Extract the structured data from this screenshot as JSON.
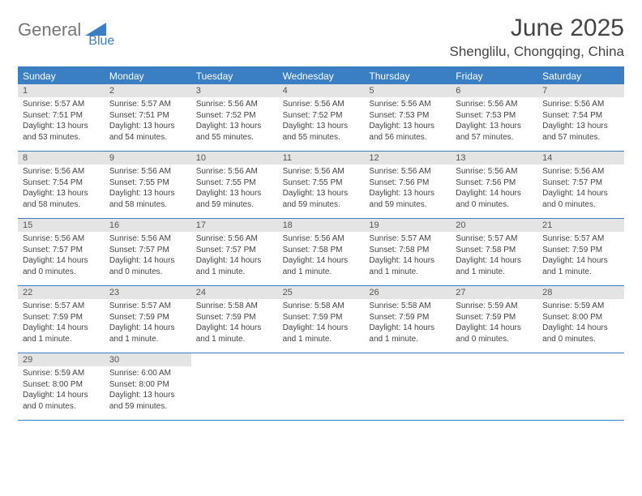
{
  "logo": {
    "part1": "General",
    "part2": "Blue"
  },
  "title": "June 2025",
  "location": "Shenglilu, Chongqing, China",
  "colors": {
    "accent": "#3a7fc4",
    "dow_bg": "#3a7fc4",
    "dow_text": "#ffffff",
    "daynum_bg": "#e4e4e4",
    "text": "#444444",
    "logo_gray": "#777777"
  },
  "daysOfWeek": [
    "Sunday",
    "Monday",
    "Tuesday",
    "Wednesday",
    "Thursday",
    "Friday",
    "Saturday"
  ],
  "weeks": [
    [
      {
        "n": "1",
        "sr": "5:57 AM",
        "ss": "7:51 PM",
        "dl": "13 hours and 53 minutes."
      },
      {
        "n": "2",
        "sr": "5:57 AM",
        "ss": "7:51 PM",
        "dl": "13 hours and 54 minutes."
      },
      {
        "n": "3",
        "sr": "5:56 AM",
        "ss": "7:52 PM",
        "dl": "13 hours and 55 minutes."
      },
      {
        "n": "4",
        "sr": "5:56 AM",
        "ss": "7:52 PM",
        "dl": "13 hours and 55 minutes."
      },
      {
        "n": "5",
        "sr": "5:56 AM",
        "ss": "7:53 PM",
        "dl": "13 hours and 56 minutes."
      },
      {
        "n": "6",
        "sr": "5:56 AM",
        "ss": "7:53 PM",
        "dl": "13 hours and 57 minutes."
      },
      {
        "n": "7",
        "sr": "5:56 AM",
        "ss": "7:54 PM",
        "dl": "13 hours and 57 minutes."
      }
    ],
    [
      {
        "n": "8",
        "sr": "5:56 AM",
        "ss": "7:54 PM",
        "dl": "13 hours and 58 minutes."
      },
      {
        "n": "9",
        "sr": "5:56 AM",
        "ss": "7:55 PM",
        "dl": "13 hours and 58 minutes."
      },
      {
        "n": "10",
        "sr": "5:56 AM",
        "ss": "7:55 PM",
        "dl": "13 hours and 59 minutes."
      },
      {
        "n": "11",
        "sr": "5:56 AM",
        "ss": "7:55 PM",
        "dl": "13 hours and 59 minutes."
      },
      {
        "n": "12",
        "sr": "5:56 AM",
        "ss": "7:56 PM",
        "dl": "13 hours and 59 minutes."
      },
      {
        "n": "13",
        "sr": "5:56 AM",
        "ss": "7:56 PM",
        "dl": "14 hours and 0 minutes."
      },
      {
        "n": "14",
        "sr": "5:56 AM",
        "ss": "7:57 PM",
        "dl": "14 hours and 0 minutes."
      }
    ],
    [
      {
        "n": "15",
        "sr": "5:56 AM",
        "ss": "7:57 PM",
        "dl": "14 hours and 0 minutes."
      },
      {
        "n": "16",
        "sr": "5:56 AM",
        "ss": "7:57 PM",
        "dl": "14 hours and 0 minutes."
      },
      {
        "n": "17",
        "sr": "5:56 AM",
        "ss": "7:57 PM",
        "dl": "14 hours and 1 minute."
      },
      {
        "n": "18",
        "sr": "5:56 AM",
        "ss": "7:58 PM",
        "dl": "14 hours and 1 minute."
      },
      {
        "n": "19",
        "sr": "5:57 AM",
        "ss": "7:58 PM",
        "dl": "14 hours and 1 minute."
      },
      {
        "n": "20",
        "sr": "5:57 AM",
        "ss": "7:58 PM",
        "dl": "14 hours and 1 minute."
      },
      {
        "n": "21",
        "sr": "5:57 AM",
        "ss": "7:59 PM",
        "dl": "14 hours and 1 minute."
      }
    ],
    [
      {
        "n": "22",
        "sr": "5:57 AM",
        "ss": "7:59 PM",
        "dl": "14 hours and 1 minute."
      },
      {
        "n": "23",
        "sr": "5:57 AM",
        "ss": "7:59 PM",
        "dl": "14 hours and 1 minute."
      },
      {
        "n": "24",
        "sr": "5:58 AM",
        "ss": "7:59 PM",
        "dl": "14 hours and 1 minute."
      },
      {
        "n": "25",
        "sr": "5:58 AM",
        "ss": "7:59 PM",
        "dl": "14 hours and 1 minute."
      },
      {
        "n": "26",
        "sr": "5:58 AM",
        "ss": "7:59 PM",
        "dl": "14 hours and 1 minute."
      },
      {
        "n": "27",
        "sr": "5:59 AM",
        "ss": "7:59 PM",
        "dl": "14 hours and 0 minutes."
      },
      {
        "n": "28",
        "sr": "5:59 AM",
        "ss": "8:00 PM",
        "dl": "14 hours and 0 minutes."
      }
    ],
    [
      {
        "n": "29",
        "sr": "5:59 AM",
        "ss": "8:00 PM",
        "dl": "14 hours and 0 minutes."
      },
      {
        "n": "30",
        "sr": "6:00 AM",
        "ss": "8:00 PM",
        "dl": "13 hours and 59 minutes."
      },
      null,
      null,
      null,
      null,
      null
    ]
  ],
  "labels": {
    "sunrise": "Sunrise: ",
    "sunset": "Sunset: ",
    "daylight": "Daylight: "
  }
}
